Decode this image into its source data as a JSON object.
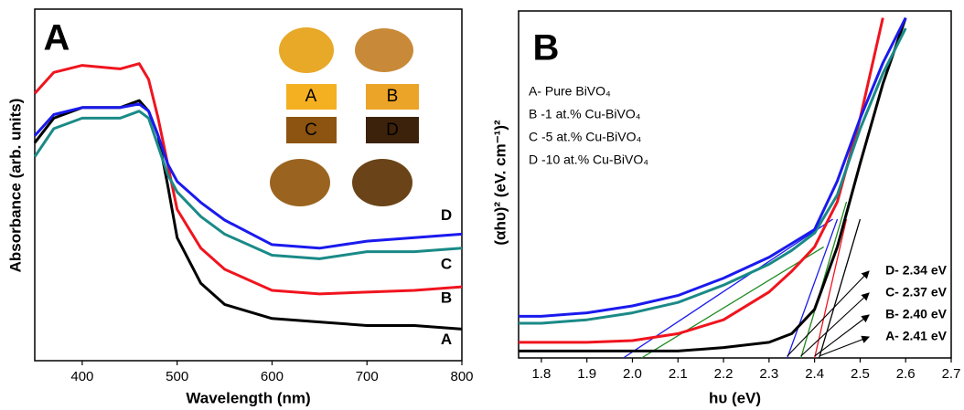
{
  "chart_data": [
    {
      "type": "line",
      "panel_label": "A",
      "x_label": "Wavelength (nm)",
      "y_label": "Absorbance (arb. units)",
      "x": [
        350,
        370,
        400,
        440,
        460,
        470,
        480,
        490,
        500,
        525,
        550,
        600,
        650,
        700,
        750,
        800
      ],
      "xlim": [
        350,
        800
      ],
      "xticks": [
        400,
        500,
        600,
        700,
        800
      ],
      "ylim": [
        0,
        1
      ],
      "series": [
        {
          "name": "A",
          "color": "#000000",
          "values": [
            0.62,
            0.69,
            0.72,
            0.72,
            0.74,
            0.71,
            0.64,
            0.5,
            0.35,
            0.22,
            0.16,
            0.12,
            0.11,
            0.1,
            0.1,
            0.09
          ]
        },
        {
          "name": "B",
          "color": "#f0141e",
          "values": [
            0.76,
            0.82,
            0.84,
            0.83,
            0.845,
            0.8,
            0.69,
            0.56,
            0.43,
            0.32,
            0.26,
            0.2,
            0.19,
            0.195,
            0.2,
            0.21
          ]
        },
        {
          "name": "C",
          "color": "#1a8a87",
          "values": [
            0.58,
            0.66,
            0.69,
            0.69,
            0.71,
            0.69,
            0.61,
            0.53,
            0.48,
            0.41,
            0.36,
            0.3,
            0.29,
            0.31,
            0.31,
            0.32
          ]
        },
        {
          "name": "D",
          "color": "#1a1aee",
          "values": [
            0.64,
            0.7,
            0.72,
            0.72,
            0.73,
            0.71,
            0.64,
            0.56,
            0.51,
            0.45,
            0.4,
            0.33,
            0.32,
            0.34,
            0.35,
            0.36
          ]
        }
      ]
    },
    {
      "type": "line",
      "panel_label": "B",
      "x_label": "hυ (eV)",
      "y_label": "(αhυ)² (eV. cm⁻¹)²",
      "x": [
        1.75,
        1.8,
        1.9,
        2.0,
        2.1,
        2.2,
        2.3,
        2.35,
        2.4,
        2.45,
        2.5,
        2.55,
        2.6
      ],
      "xlim": [
        1.75,
        2.7
      ],
      "xticks": [
        1.8,
        1.9,
        {
          "value": 2,
          "label": "2.0"
        },
        2.1,
        2.2,
        2.3,
        2.4,
        2.5,
        2.6,
        2.7
      ],
      "ylim": [
        0,
        1
      ],
      "series": [
        {
          "name": "A- Pure BiVO₄",
          "color": "#000000",
          "values": [
            0.02,
            0.02,
            0.02,
            0.02,
            0.02,
            0.03,
            0.045,
            0.07,
            0.14,
            0.32,
            0.56,
            0.79,
            0.98
          ]
        },
        {
          "name": "B -1 at.% Cu-BiVO₄",
          "color": "#f0141e",
          "values": [
            0.045,
            0.045,
            0.045,
            0.05,
            0.07,
            0.11,
            0.19,
            0.25,
            0.32,
            0.45,
            0.69,
            0.98,
            null
          ]
        },
        {
          "name": "C -5 at.% Cu-BiVO₄",
          "color": "#1a8a87",
          "values": [
            0.1,
            0.1,
            0.11,
            0.13,
            0.16,
            0.21,
            0.27,
            0.31,
            0.36,
            0.47,
            0.66,
            0.82,
            0.95
          ]
        },
        {
          "name": "D -10 at.% Cu-BiVO₄",
          "color": "#1a1aee",
          "values": [
            0.12,
            0.12,
            0.13,
            0.15,
            0.18,
            0.23,
            0.29,
            0.33,
            0.37,
            0.51,
            0.69,
            0.85,
            0.98
          ]
        }
      ],
      "tangent_lines": [
        {
          "color": "#1a1aee",
          "x": [
            2.34,
            2.45
          ],
          "y": [
            0,
            0.4
          ]
        },
        {
          "color": "#1f8a1f",
          "x": [
            2.37,
            2.47
          ],
          "y": [
            0,
            0.45
          ]
        },
        {
          "color": "#f0141e",
          "x": [
            2.4,
            2.47
          ],
          "y": [
            0,
            0.4
          ]
        },
        {
          "color": "#000000",
          "x": [
            2.41,
            2.5
          ],
          "y": [
            0,
            0.4
          ]
        },
        {
          "color": "#1a1aee",
          "x": [
            1.98,
            2.44
          ],
          "y": [
            0,
            0.4
          ]
        },
        {
          "color": "#1f8a1f",
          "x": [
            2.02,
            2.42
          ],
          "y": [
            0,
            0.32
          ]
        }
      ],
      "annotations": [
        {
          "text": "D- 2.34 eV",
          "x": 2.34
        },
        {
          "text": "C- 2.37 eV",
          "x": 2.37
        },
        {
          "text": "B- 2.40 eV",
          "x": 2.4
        },
        {
          "text": "A- 2.41 eV",
          "x": 2.41
        }
      ]
    }
  ]
}
